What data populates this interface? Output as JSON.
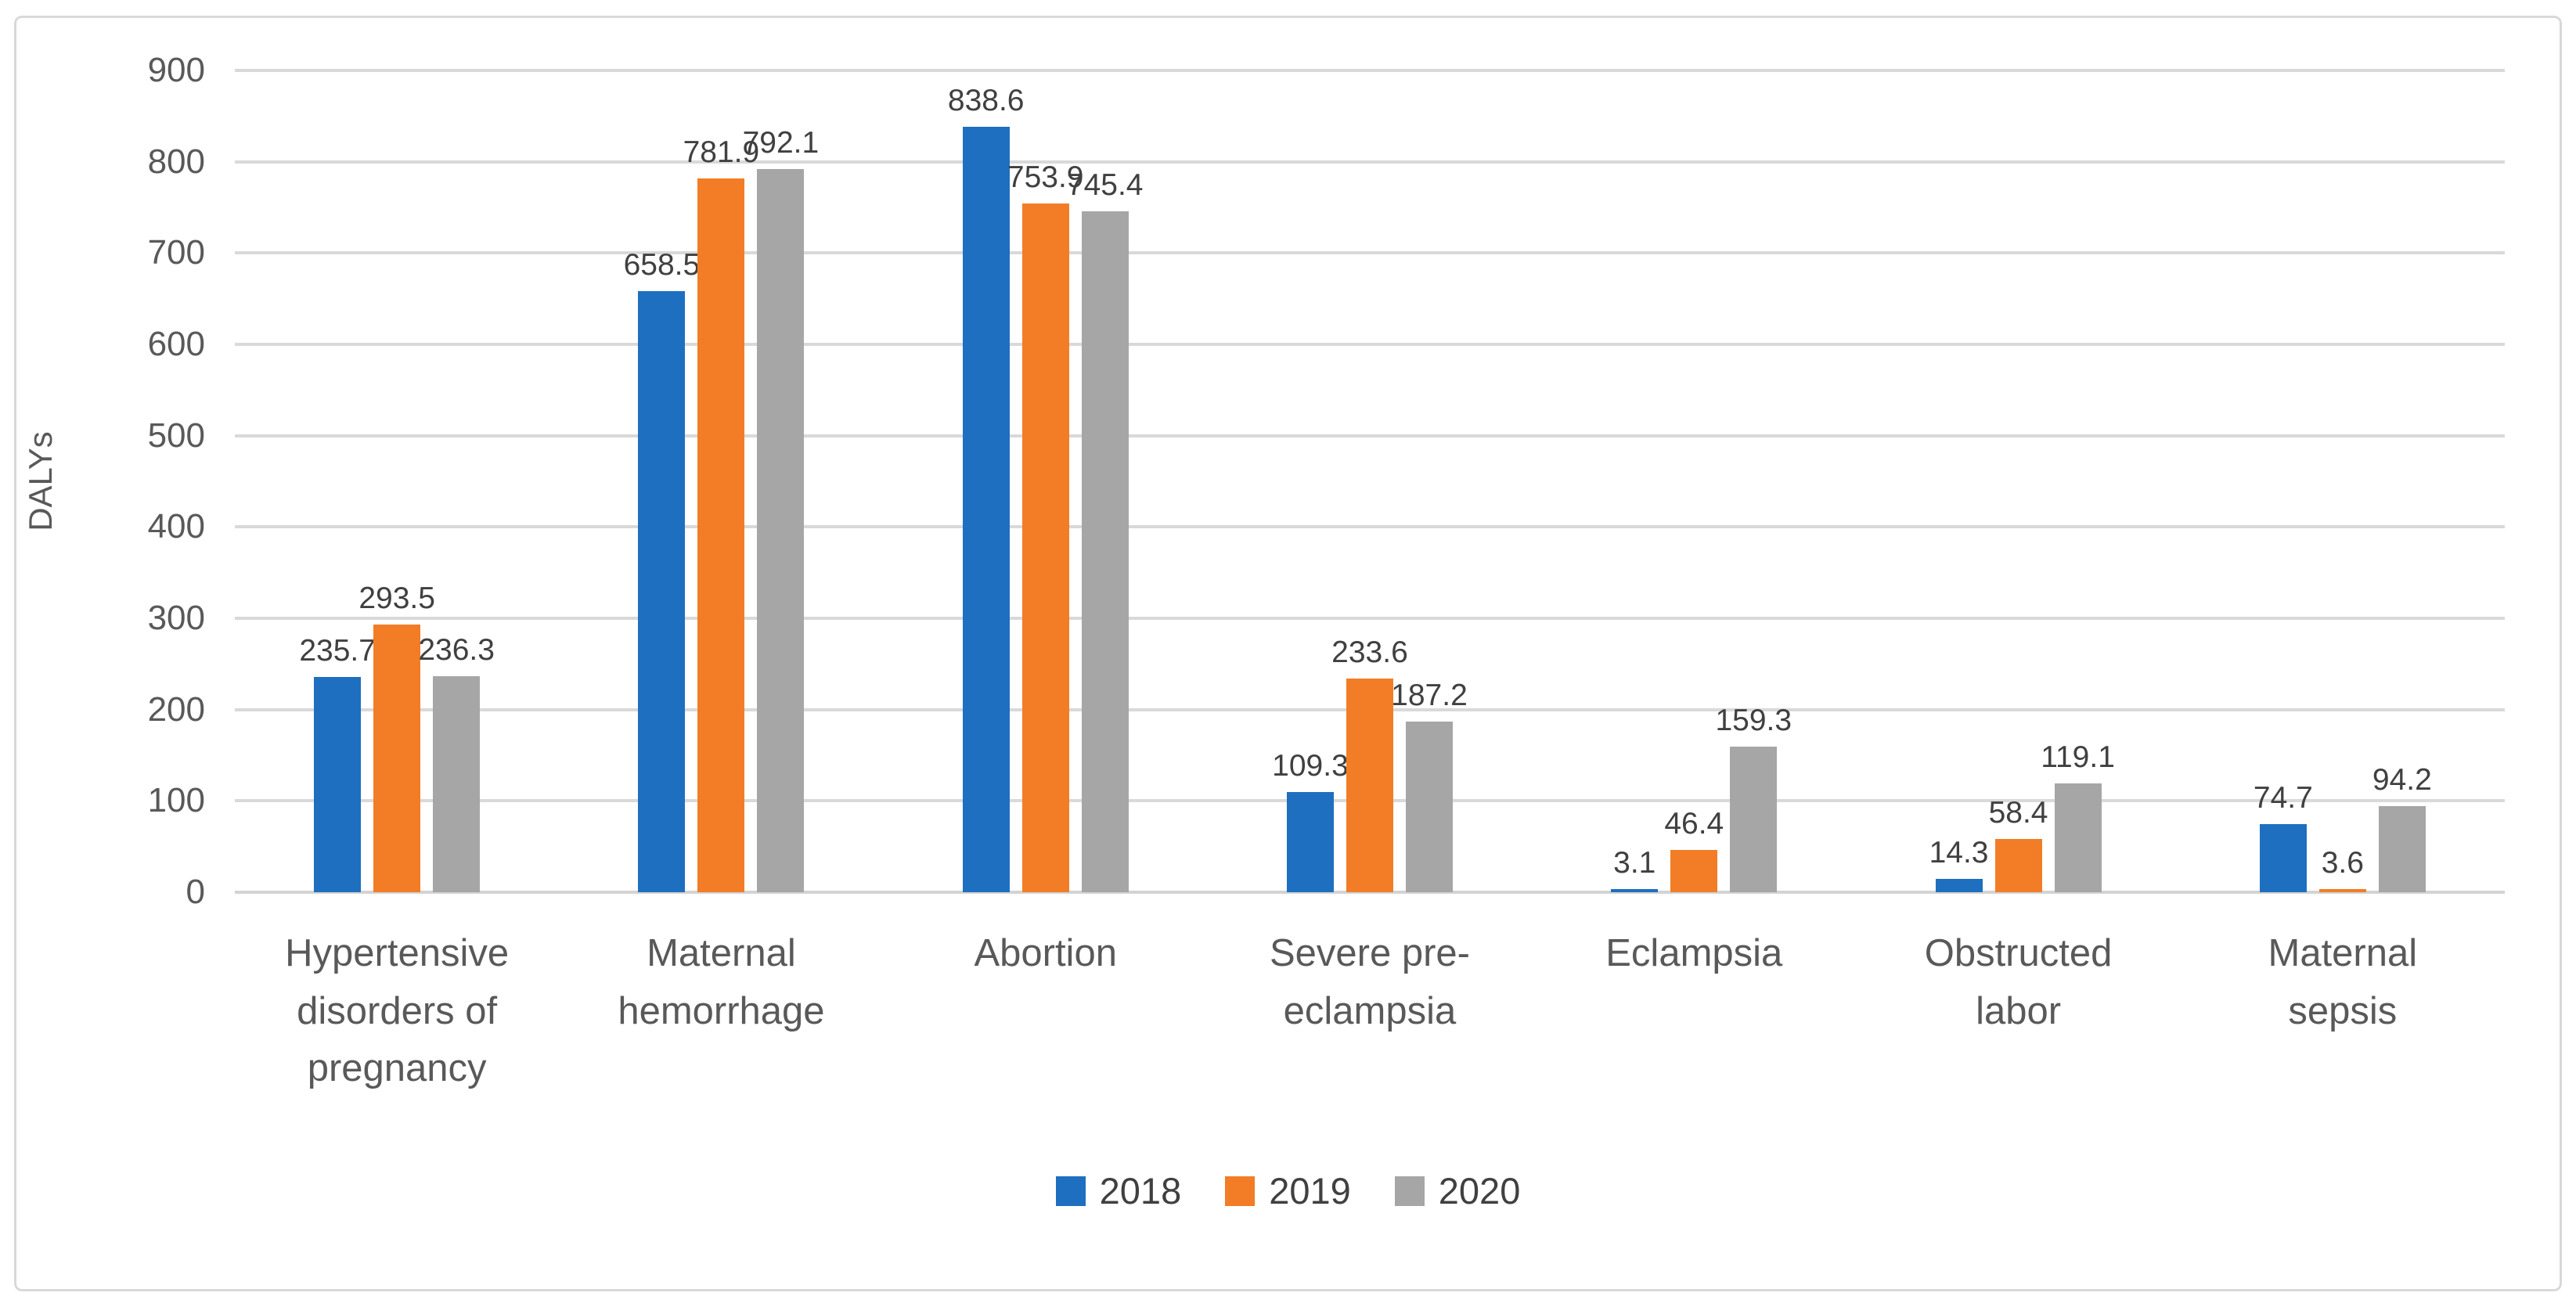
{
  "chart_data": {
    "type": "bar",
    "title": "",
    "xlabel": "",
    "ylabel": "DALYs",
    "ylim": [
      0,
      900
    ],
    "yticks": [
      0,
      100,
      200,
      300,
      400,
      500,
      600,
      700,
      800,
      900
    ],
    "grid": true,
    "legend_position": "bottom-center",
    "categories": [
      "Hypertensive disorders of pregnancy",
      "Maternal hemorrhage",
      "Abortion",
      "Severe pre-eclampsia",
      "Eclampsia",
      "Obstructed labor",
      "Maternal sepsis"
    ],
    "series": [
      {
        "name": "2018",
        "color": "#1E6FC0",
        "values": [
          235.7,
          658.5,
          838.6,
          109.3,
          3.1,
          14.3,
          74.7
        ]
      },
      {
        "name": "2019",
        "color": "#F27D26",
        "values": [
          293.5,
          781.9,
          753.9,
          233.6,
          46.4,
          58.4,
          3.6
        ]
      },
      {
        "name": "2020",
        "color": "#A6A6A6",
        "values": [
          236.3,
          792.1,
          745.4,
          187.2,
          159.3,
          119.1,
          94.2
        ]
      }
    ],
    "data_label_format": "0.1"
  },
  "colors": {
    "gridline": "#D9D9D9",
    "axis_line": "#D3D3D3",
    "tick_text": "#595959",
    "data_label_text": "#404040",
    "frame_border": "#D9D9D9",
    "background": "#FFFFFF"
  }
}
